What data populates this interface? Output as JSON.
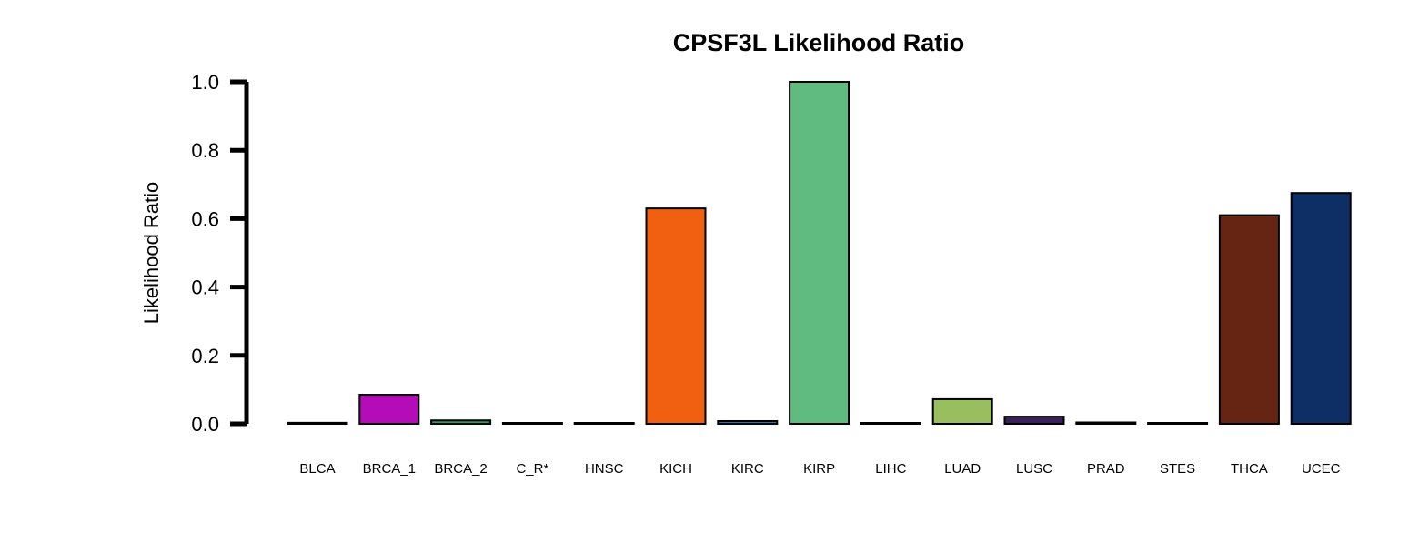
{
  "chart_data": {
    "type": "bar",
    "title": "CPSF3L Likelihood Ratio",
    "xlabel": "",
    "ylabel": "Likelihood Ratio",
    "ylim": [
      0,
      1.0
    ],
    "yticks": [
      "0.0",
      "0.2",
      "0.4",
      "0.6",
      "0.8",
      "1.0"
    ],
    "grid": false,
    "legend": "none",
    "categories": [
      "BLCA",
      "BRCA_1",
      "BRCA_2",
      "C_R*",
      "HNSC",
      "KICH",
      "KIRC",
      "KIRP",
      "LIHC",
      "LUAD",
      "LUSC",
      "PRAD",
      "STES",
      "THCA",
      "UCEC"
    ],
    "values": [
      0.003,
      0.085,
      0.01,
      0.001,
      0.001,
      0.63,
      0.008,
      1.0,
      0.001,
      0.072,
      0.021,
      0.004,
      0.001,
      0.61,
      0.675
    ],
    "colors": [
      "#E41A1C",
      "#B30CB8",
      "#1B9E77",
      "#444444",
      "#7A1F1F",
      "#F06010",
      "#1F78B4",
      "#5FBB80",
      "#888888",
      "#98BE60",
      "#3A1F5E",
      "#E6AB02",
      "#555555",
      "#662513",
      "#0E2F66"
    ]
  }
}
